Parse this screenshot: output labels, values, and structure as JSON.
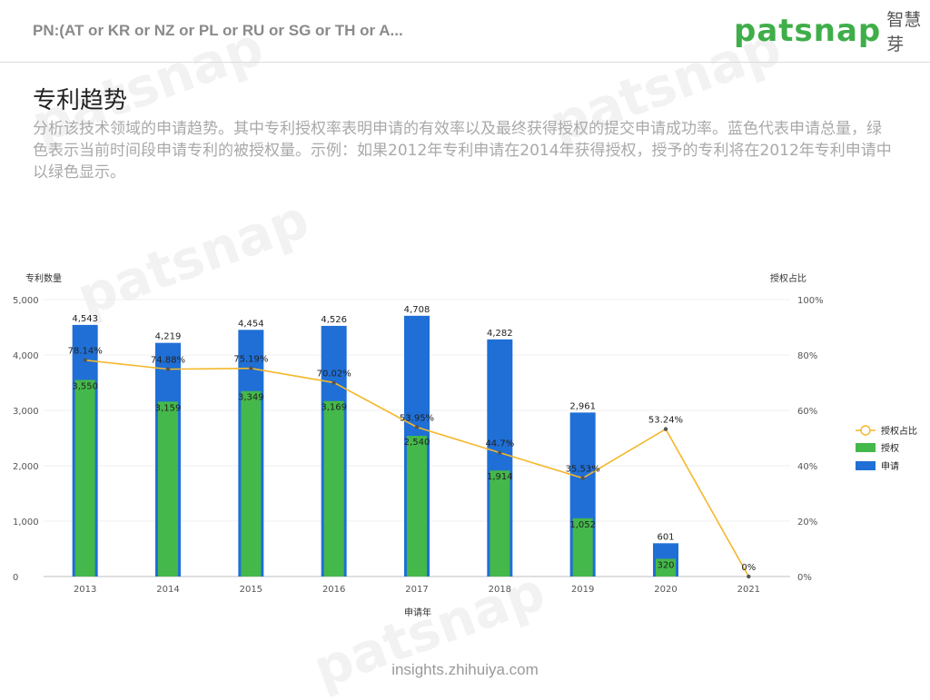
{
  "header": {
    "query": "PN:(AT or KR or NZ or PL or RU or SG or TH or A...",
    "logo_text": "patsnap",
    "logo_cn": "智慧芽"
  },
  "page": {
    "title": "专利趋势",
    "description": "分析该技术领域的申请趋势。其中专利授权率表明申请的有效率以及最终获得授权的提交申请成功率。蓝色代表申请总量，绿色表示当前时间段申请专利的被授权量。示例：如果2012年专利申请在2014年获得授权，授予的专利将在2012年专利申请中以绿色显示。"
  },
  "footer": {
    "link": "insights.zhihuiya.com"
  },
  "colors": {
    "application": "#1f6fd6",
    "grant": "#44b84a",
    "ratio": "#f5b72b"
  },
  "chart_data": {
    "type": "bar",
    "categories": [
      "2013",
      "2014",
      "2015",
      "2016",
      "2017",
      "2018",
      "2019",
      "2020",
      "2021"
    ],
    "series": [
      {
        "name": "申请",
        "values": [
          4543,
          4219,
          4454,
          4526,
          4708,
          4282,
          2961,
          601,
          0
        ]
      },
      {
        "name": "授权",
        "values": [
          3550,
          3159,
          3349,
          3169,
          2540,
          1914,
          1052,
          320,
          0
        ]
      },
      {
        "name": "授权占比",
        "type": "line",
        "axis": "right",
        "values": [
          78.14,
          74.88,
          75.19,
          70.02,
          53.95,
          44.7,
          35.53,
          53.24,
          0
        ]
      }
    ],
    "bar_labels": [
      "4,543",
      "4,219",
      "4,454",
      "4,526",
      "4,708",
      "4,282",
      "2,961",
      "601",
      ""
    ],
    "grant_labels": [
      "3,550",
      "3,159",
      "3,349",
      "3,169",
      "2,540",
      "1,914",
      "1,052",
      "320",
      ""
    ],
    "ratio_labels": [
      "78.14%",
      "74.88%",
      "75.19%",
      "70.02%",
      "53.95%",
      "44.7%",
      "35.53%",
      "53.24%",
      "0%"
    ],
    "xlabel": "申请年",
    "ylabel": "专利数量",
    "y2label": "授权占比",
    "ylim": [
      0,
      5000
    ],
    "y2lim": [
      0,
      100
    ],
    "yticks": [
      "0",
      "1,000",
      "2,000",
      "3,000",
      "4,000",
      "5,000"
    ],
    "y2ticks": [
      "0%",
      "20%",
      "40%",
      "60%",
      "80%",
      "100%"
    ],
    "legend": [
      "授权占比",
      "授权",
      "申请"
    ],
    "legend_position": "right"
  }
}
